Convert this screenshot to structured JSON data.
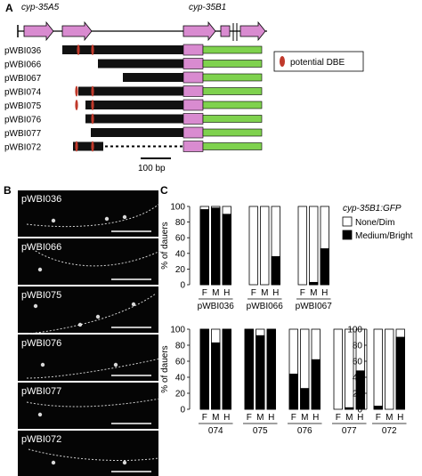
{
  "figure": {
    "panel_labels": {
      "a": "A",
      "b": "B",
      "c": "C"
    },
    "panel_a": {
      "gene_left": "cyp-35A5",
      "gene_right": "cyp-35B1",
      "constructs": [
        {
          "name": "pWBI036",
          "dbe_count": 2,
          "dotted": false
        },
        {
          "name": "pWBI066",
          "dbe_count": 0,
          "dotted": false
        },
        {
          "name": "pWBI067",
          "dbe_count": 0,
          "dotted": false
        },
        {
          "name": "pWBI074",
          "dbe_count": 2,
          "dotted": false
        },
        {
          "name": "pWBI075",
          "dbe_count": 2,
          "dotted": false
        },
        {
          "name": "pWBI076",
          "dbe_count": 1,
          "dotted": false
        },
        {
          "name": "pWBI077",
          "dbe_count": 0,
          "dotted": false
        },
        {
          "name": "pWBI072",
          "dbe_count": 2,
          "dotted": true
        }
      ],
      "legend_dbe": "potential DBE",
      "scale_bar": "100 bp",
      "colors": {
        "bar": "#111111",
        "gene": "#d98bd0",
        "gfp": "#7fd24e",
        "dbe": "#c0392b"
      }
    },
    "panel_b": {
      "images": [
        "pWBI036",
        "pWBI066",
        "pWBI075",
        "pWBI076",
        "pWBI077",
        "pWBI072"
      ]
    },
    "panel_c": {
      "legend_title": "cyp-35B1:GFP",
      "legend_items": [
        "None/Dim",
        "Medium/Bright"
      ],
      "ylabel": "% of dauers",
      "yticks": [
        "0",
        "20",
        "40",
        "60",
        "80",
        "100"
      ],
      "condition_labels": [
        "F",
        "M",
        "H"
      ]
    }
  },
  "chart_data": [
    {
      "type": "bar",
      "ylabel": "% of dauers",
      "ylim": [
        0,
        100
      ],
      "categories": [
        "pWBI036",
        "pWBI066",
        "pWBI067"
      ],
      "conditions": [
        "F",
        "M",
        "H"
      ],
      "series": [
        {
          "name": "Medium/Bright",
          "values": [
            [
              96,
              98,
              90
            ],
            [
              0,
              0,
              36
            ],
            [
              0,
              3,
              46
            ]
          ]
        },
        {
          "name": "None/Dim",
          "values": [
            [
              4,
              2,
              10
            ],
            [
              100,
              100,
              64
            ],
            [
              100,
              97,
              54
            ]
          ]
        }
      ]
    },
    {
      "type": "bar",
      "ylabel": "% of dauers",
      "ylim": [
        0,
        100
      ],
      "categories": [
        "074",
        "075",
        "076",
        "077"
      ],
      "conditions": [
        "F",
        "M",
        "H"
      ],
      "series": [
        {
          "name": "Medium/Bright",
          "values": [
            [
              100,
              83,
              100
            ],
            [
              100,
              92,
              100
            ],
            [
              44,
              26,
              62
            ],
            [
              0,
              2,
              48
            ]
          ]
        },
        {
          "name": "None/Dim",
          "values": [
            [
              0,
              17,
              0
            ],
            [
              0,
              8,
              0
            ],
            [
              56,
              74,
              38
            ],
            [
              100,
              98,
              52
            ]
          ]
        }
      ]
    },
    {
      "type": "bar",
      "ylabel": "",
      "ylim": [
        0,
        100
      ],
      "categories": [
        "072"
      ],
      "conditions": [
        "F",
        "M",
        "H"
      ],
      "series": [
        {
          "name": "Medium/Bright",
          "values": [
            [
              4,
              0,
              90
            ]
          ]
        },
        {
          "name": "None/Dim",
          "values": [
            [
              96,
              100,
              10
            ]
          ]
        }
      ]
    }
  ]
}
